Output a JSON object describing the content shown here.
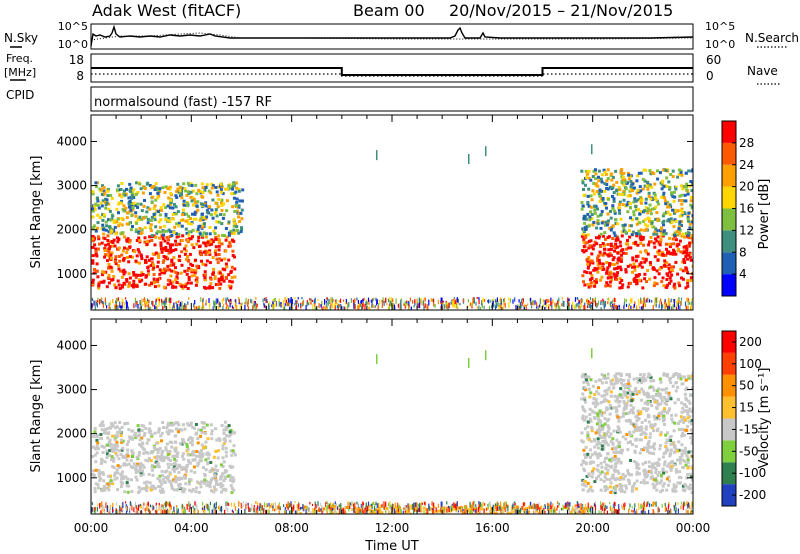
{
  "header": {
    "station": "Adak West (fitACF)",
    "beam": "Beam 00",
    "date_range": "20/Nov/2015 – 21/Nov/2015"
  },
  "strip_panels": {
    "nsky": {
      "left_label": "N.Sky",
      "right_label": "N.Search",
      "top_tick": "10^5",
      "bottom_tick": "10^0"
    },
    "freq": {
      "left_label_line1": "Freq.",
      "left_label_line2": "[MHz]",
      "left_ticks": [
        "18",
        "8"
      ],
      "right_label": "Nave",
      "right_ticks": [
        "60",
        "0"
      ],
      "chart_data": {
        "type": "line",
        "x": [
          0,
          10,
          10,
          18,
          18,
          24
        ],
        "frequency_mhz": [
          13,
          13,
          10.5,
          10.5,
          13,
          13
        ],
        "ylim": [
          8,
          18
        ]
      }
    },
    "cpid": {
      "left_label": "CPID",
      "text": "normalsound (fast) -157 RF"
    }
  },
  "panels": {
    "power": {
      "ylabel": "Slant Range [km]",
      "yticks": [
        "4000",
        "3000",
        "2000",
        "1000"
      ],
      "colorbar_label": "Power [dB]",
      "colorbar_ticks": [
        "28",
        "24",
        "20",
        "16",
        "12",
        "8",
        "4"
      ],
      "colors": [
        "#0000ff",
        "#1f5fb4",
        "#3f8f7f",
        "#7fbf3f",
        "#ffd700",
        "#ff9f00",
        "#ff5a00",
        "#ff0000"
      ]
    },
    "velocity": {
      "ylabel": "Slant Range [km]",
      "yticks": [
        "4000",
        "3000",
        "2000",
        "1000"
      ],
      "colorbar_label": "Velocity [m s⁻¹]",
      "colorbar_ticks": [
        "200",
        "100",
        "50",
        "15",
        "-15",
        "-50",
        "-100",
        "-200"
      ],
      "colors": [
        "#2040c0",
        "#2f7f4f",
        "#7fcf3f",
        "#c8c8c8",
        "#ffc030",
        "#ff9000",
        "#ff4000",
        "#ff0000"
      ]
    }
  },
  "xaxis": {
    "label": "Time UT",
    "ticks": [
      "00:00",
      "04:00",
      "08:00",
      "12:00",
      "16:00",
      "20:00",
      "00:00"
    ]
  },
  "chart_data": {
    "type": "heatmap",
    "x_range_hours": [
      0,
      24
    ],
    "ylim_km": [
      180,
      4600
    ],
    "power_regions_db": [
      {
        "t_start": 0,
        "t_end": 5.7,
        "r_min": 700,
        "r_max": 1900,
        "value": 28
      },
      {
        "t_start": 0,
        "t_end": 6,
        "r_min": 1900,
        "r_max": 3100,
        "value": 16
      },
      {
        "t_start": 19.5,
        "t_end": 24,
        "r_min": 700,
        "r_max": 1900,
        "value": 28
      },
      {
        "t_start": 19.5,
        "t_end": 24,
        "r_min": 1900,
        "r_max": 3400,
        "value": 20
      }
    ],
    "velocity_regions_ms": [
      {
        "t_start": 0,
        "t_end": 5.7,
        "r_min": 700,
        "r_max": 2300,
        "value": 0
      },
      {
        "t_start": 19.5,
        "t_end": 24,
        "r_min": 700,
        "r_max": 3400,
        "value": 0
      },
      {
        "t_start": 8,
        "t_end": 20,
        "r_min": 180,
        "r_max": 400,
        "value": -50
      }
    ]
  }
}
